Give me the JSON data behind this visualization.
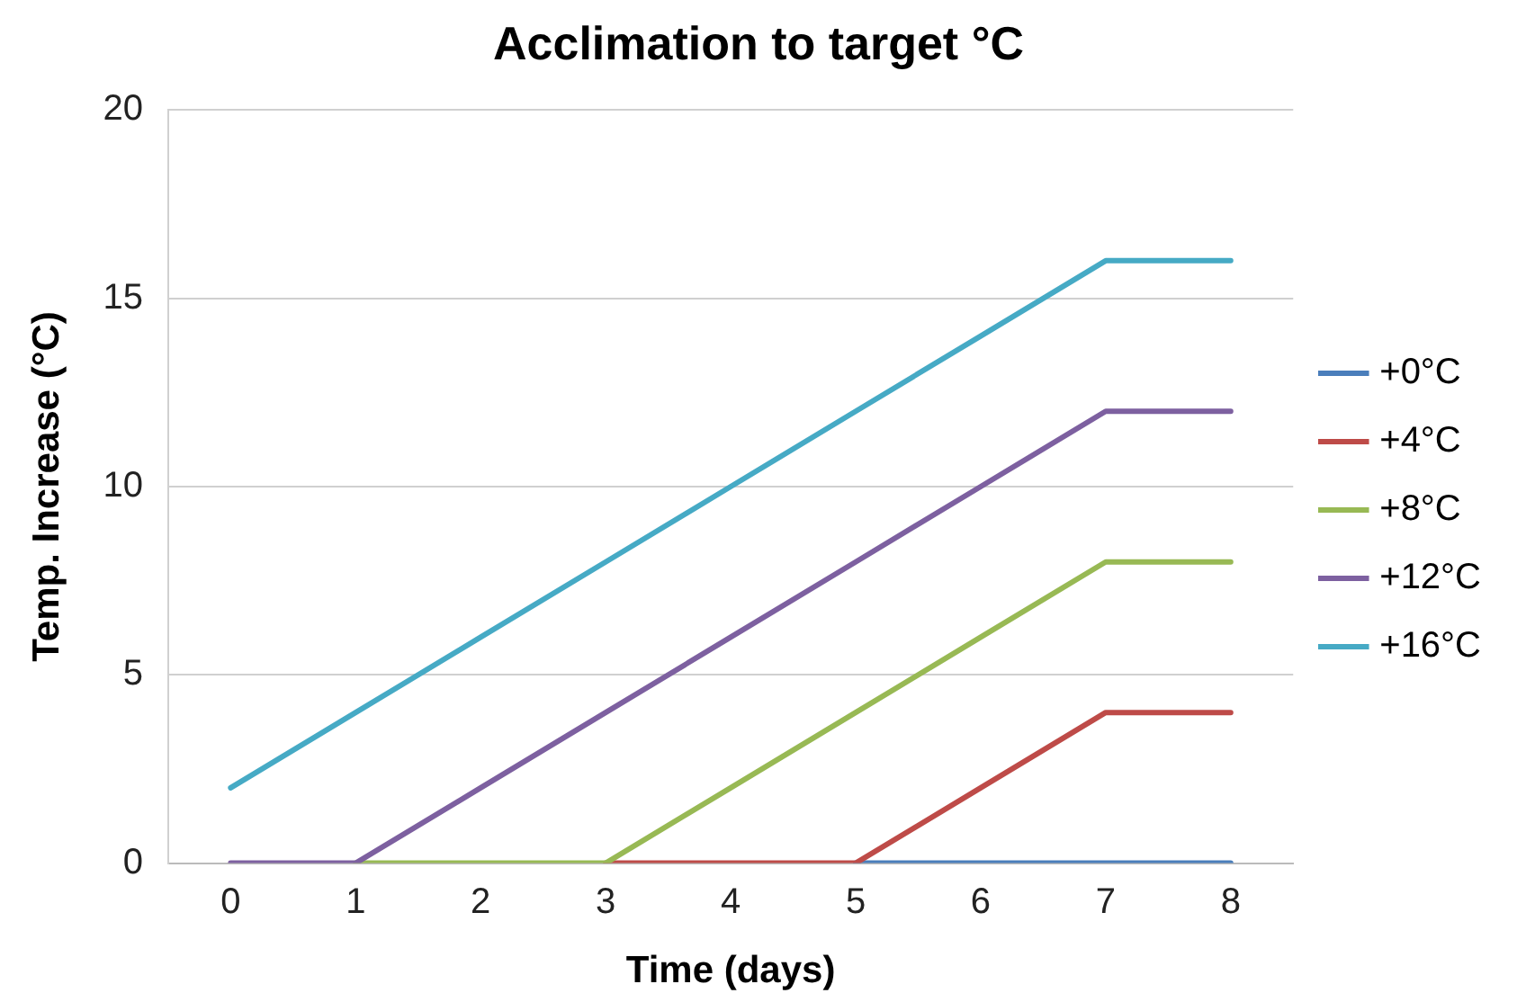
{
  "chart_data": {
    "type": "line",
    "title": "Acclimation to target °C",
    "xlabel": "Time (days)",
    "ylabel": "Temp. Increase (°C)",
    "categories": [
      "0",
      "1",
      "2",
      "3",
      "4",
      "5",
      "6",
      "7",
      "8"
    ],
    "series": [
      {
        "name": "+0°C",
        "color": "#4a7ebb",
        "values": [
          null,
          null,
          null,
          null,
          null,
          0,
          0,
          0,
          0
        ]
      },
      {
        "name": "+4°C",
        "color": "#be4b48",
        "values": [
          null,
          null,
          null,
          0,
          0,
          0,
          2,
          4,
          4
        ]
      },
      {
        "name": "+8°C",
        "color": "#98b954",
        "values": [
          null,
          0,
          0,
          0,
          2,
          4,
          6,
          8,
          8
        ]
      },
      {
        "name": "+12°C",
        "color": "#7d60a0",
        "values": [
          0,
          0,
          2,
          4,
          6,
          8,
          10,
          12,
          12
        ]
      },
      {
        "name": "+16°C",
        "color": "#46aac5",
        "values": [
          2,
          4,
          6,
          8,
          10,
          12,
          14,
          16,
          16
        ]
      }
    ],
    "ylim": [
      0,
      20
    ],
    "yticks": [
      0,
      5,
      10,
      15,
      20
    ],
    "grid": "y",
    "legend": "right",
    "marker": "none",
    "line_style": "solid"
  }
}
